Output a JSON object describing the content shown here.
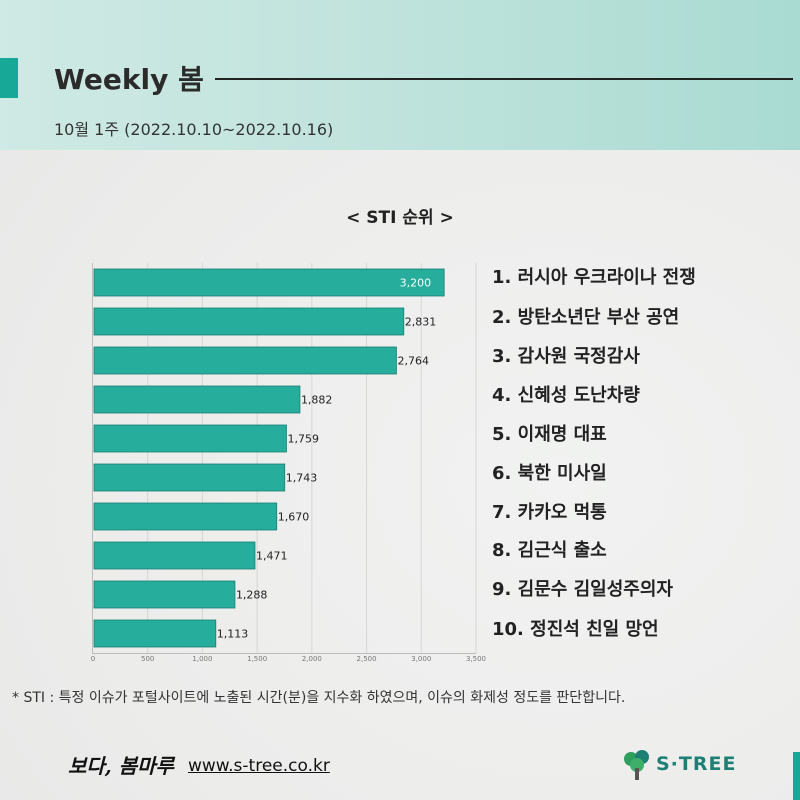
{
  "header": {
    "title": "Weekly 봄",
    "subtitle_week": "10월 1주",
    "subtitle_range": "(2022.10.10~2022.10.16)"
  },
  "chart_data": {
    "type": "bar",
    "orientation": "horizontal",
    "title": "< STI 순위 >",
    "categories": [
      "1. 러시아 우크라이나 전쟁",
      "2. 방탄소년단 부산 공연",
      "3. 감사원 국정감사",
      "4. 신혜성 도난차량",
      "5. 이재명 대표",
      "6. 북한 미사일",
      "7. 카카오 먹통",
      "8. 김근식 출소",
      "9. 김문수 김일성주의자",
      "10. 정진석 친일 망언"
    ],
    "values": [
      3200,
      2831,
      2764,
      1882,
      1759,
      1743,
      1670,
      1471,
      1288,
      1113
    ],
    "value_labels": [
      "3,200",
      "2,831",
      "2,764",
      "1,882",
      "1,759",
      "1,743",
      "1,670",
      "1,471",
      "1,288",
      "1,113"
    ],
    "xlim": [
      0,
      3500
    ],
    "x_ticks": [
      0,
      500,
      1000,
      1500,
      2000,
      2500,
      3000,
      3500
    ],
    "x_tick_labels": [
      "0",
      "500",
      "1,000",
      "1,500",
      "2,000",
      "2,500",
      "3,000",
      "3,500"
    ],
    "xlabel": "",
    "ylabel": "",
    "grid": "vertical",
    "legend": "none",
    "bar_color": "#26ad9c",
    "bar_border_color": "#1a7f72"
  },
  "footnote": "* STI : 특정 이슈가 포털사이트에 노출된 시간(분)을 지수화 하였으며, 이슈의 화제성 정도를 판단합니다.",
  "footer": {
    "brand_script": "보다, 봄마루",
    "url": "www.s-tree.co.kr",
    "logo_text": "S·TREE",
    "logo_icon": "tree-icon"
  },
  "colors": {
    "accent": "#18a898",
    "header_bg": "#bfe3dc",
    "logo_green": "#1e7f74"
  }
}
